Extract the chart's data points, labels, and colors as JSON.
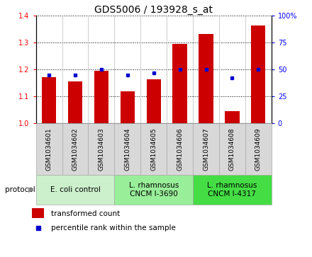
{
  "title": "GDS5006 / 193928_s_at",
  "samples": [
    "GSM1034601",
    "GSM1034602",
    "GSM1034603",
    "GSM1034604",
    "GSM1034605",
    "GSM1034606",
    "GSM1034607",
    "GSM1034608",
    "GSM1034609"
  ],
  "transformed_count": [
    1.17,
    1.155,
    1.196,
    1.12,
    1.163,
    1.294,
    1.33,
    1.044,
    1.362
  ],
  "percentile_rank": [
    45,
    45,
    50,
    45,
    47,
    50,
    50,
    42,
    50
  ],
  "ylim_left": [
    1.0,
    1.4
  ],
  "ylim_right": [
    0,
    100
  ],
  "yticks_left": [
    1.0,
    1.1,
    1.2,
    1.3,
    1.4
  ],
  "yticks_right": [
    0,
    25,
    50,
    75,
    100
  ],
  "bar_color": "#cc0000",
  "dot_color": "#0000cc",
  "bar_width": 0.55,
  "sample_box_color": "#d8d8d8",
  "groups": [
    {
      "label": "E. coli control",
      "indices": [
        0,
        1,
        2
      ],
      "color": "#ccf0cc"
    },
    {
      "label": "L. rhamnosus\nCNCM I-3690",
      "indices": [
        3,
        4,
        5
      ],
      "color": "#99ee99"
    },
    {
      "label": "L. rhamnosus\nCNCM I-4317",
      "indices": [
        6,
        7,
        8
      ],
      "color": "#44dd44"
    }
  ],
  "legend_bar_label": "transformed count",
  "legend_dot_label": "percentile rank within the sample",
  "protocol_label": "protocol",
  "title_fontsize": 10,
  "tick_fontsize": 7,
  "group_fontsize": 7.5,
  "legend_fontsize": 7.5
}
